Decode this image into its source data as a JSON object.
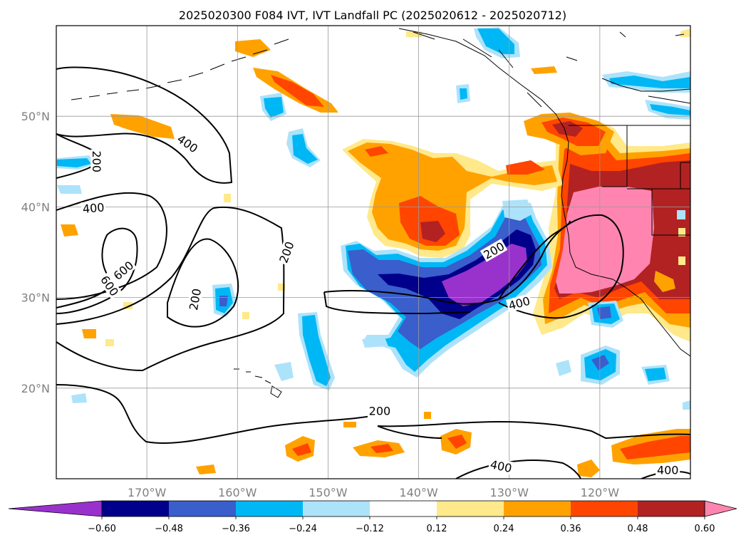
{
  "title": "2025020300 F084 IVT, IVT Landfall PC (2025020612 - 2025020712)",
  "map": {
    "lon_range": [
      -180,
      -110
    ],
    "lat_range": [
      10,
      60
    ],
    "lon_ticks": [
      {
        "lon": -170,
        "label": "170°W"
      },
      {
        "lon": -160,
        "label": "160°W"
      },
      {
        "lon": -150,
        "label": "150°W"
      },
      {
        "lon": -140,
        "label": "140°W"
      },
      {
        "lon": -130,
        "label": "130°W"
      },
      {
        "lon": -120,
        "label": "120°W"
      }
    ],
    "lat_ticks": [
      {
        "lat": 50,
        "label": "50°N"
      },
      {
        "lat": 40,
        "label": "40°N"
      },
      {
        "lat": 30,
        "label": "30°N"
      },
      {
        "lat": 20,
        "label": "20°N"
      }
    ],
    "grid": true
  },
  "colorbar": {
    "ticks": [
      "−0.60",
      "−0.48",
      "−0.36",
      "−0.24",
      "−0.12",
      "0.12",
      "0.24",
      "0.36",
      "0.48",
      "0.60"
    ],
    "colors": [
      "#9932CC",
      "#00008B",
      "#3A5ECC",
      "#00B7F5",
      "#ADE3FA",
      "#FFFFFF",
      "#FFE98A",
      "#FFA200",
      "#FF4500",
      "#B22222",
      "#FF85B0"
    ],
    "extend": "both"
  },
  "contours": {
    "labels": [
      {
        "text": "200",
        "lon": -175.5,
        "lat": 45.0,
        "rot": 90
      },
      {
        "text": "400",
        "lon": -165.5,
        "lat": 47.0,
        "rot": 35
      },
      {
        "text": "400",
        "lon": -175.9,
        "lat": 39.9,
        "rot": -5
      },
      {
        "text": "600",
        "lon": -172.6,
        "lat": 33.0,
        "rot": -40
      },
      {
        "text": "600",
        "lon": -174.1,
        "lat": 31.3,
        "rot": 55
      },
      {
        "text": "200",
        "lon": -164.7,
        "lat": 29.8,
        "rot": -80
      },
      {
        "text": "200",
        "lon": -154.6,
        "lat": 35.0,
        "rot": -70
      },
      {
        "text": "200",
        "lon": -131.7,
        "lat": 35.2,
        "rot": -30
      },
      {
        "text": "400",
        "lon": -128.9,
        "lat": 29.4,
        "rot": -15
      },
      {
        "text": "200",
        "lon": -144.3,
        "lat": 17.5,
        "rot": 0
      },
      {
        "text": "400",
        "lon": -130.9,
        "lat": 11.4,
        "rot": 12
      },
      {
        "text": "400",
        "lon": -112.5,
        "lat": 11.0,
        "rot": 0
      }
    ]
  }
}
